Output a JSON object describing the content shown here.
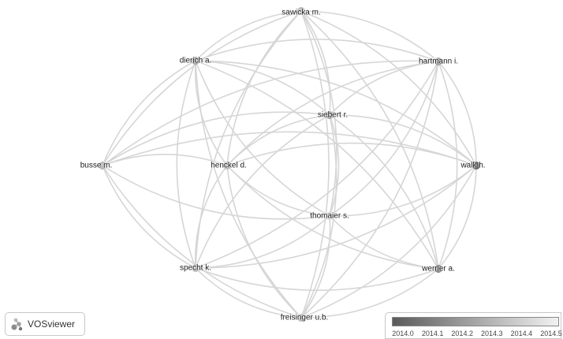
{
  "nodes": [
    {
      "id": "sawicka",
      "label": "sawicka m.",
      "score": 2014.3
    },
    {
      "id": "dierich",
      "label": "dierich a.",
      "score": 2014.2
    },
    {
      "id": "hartmann",
      "label": "hartmann i.",
      "score": 2014.2
    },
    {
      "id": "siebert",
      "label": "siebert r.",
      "score": 2014.2
    },
    {
      "id": "busse",
      "label": "busse m.",
      "score": 2014.3
    },
    {
      "id": "henckel",
      "label": "henckel d.",
      "score": 2014.3
    },
    {
      "id": "walk",
      "label": "walk h.",
      "score": 2014.0
    },
    {
      "id": "thomaier",
      "label": "thomaier s.",
      "score": 2014.4
    },
    {
      "id": "specht",
      "label": "specht k.",
      "score": 2014.3
    },
    {
      "id": "werner",
      "label": "werner a.",
      "score": 2014.1
    },
    {
      "id": "freisinger",
      "label": "freisinger u.b.",
      "score": 2014.3
    }
  ],
  "edges": [
    [
      "sawicka",
      "dierich"
    ],
    [
      "sawicka",
      "hartmann"
    ],
    [
      "sawicka",
      "siebert"
    ],
    [
      "sawicka",
      "henckel"
    ],
    [
      "sawicka",
      "walk"
    ],
    [
      "sawicka",
      "thomaier"
    ],
    [
      "sawicka",
      "specht"
    ],
    [
      "sawicka",
      "werner"
    ],
    [
      "sawicka",
      "freisinger"
    ],
    [
      "sawicka",
      "busse"
    ],
    [
      "dierich",
      "hartmann"
    ],
    [
      "dierich",
      "siebert"
    ],
    [
      "dierich",
      "busse"
    ],
    [
      "dierich",
      "henckel"
    ],
    [
      "dierich",
      "walk"
    ],
    [
      "dierich",
      "thomaier"
    ],
    [
      "dierich",
      "specht"
    ],
    [
      "dierich",
      "werner"
    ],
    [
      "dierich",
      "freisinger"
    ],
    [
      "hartmann",
      "siebert"
    ],
    [
      "hartmann",
      "busse"
    ],
    [
      "hartmann",
      "henckel"
    ],
    [
      "hartmann",
      "walk"
    ],
    [
      "hartmann",
      "thomaier"
    ],
    [
      "hartmann",
      "specht"
    ],
    [
      "hartmann",
      "werner"
    ],
    [
      "hartmann",
      "freisinger"
    ],
    [
      "siebert",
      "busse"
    ],
    [
      "siebert",
      "henckel"
    ],
    [
      "siebert",
      "walk"
    ],
    [
      "siebert",
      "thomaier"
    ],
    [
      "siebert",
      "specht"
    ],
    [
      "siebert",
      "werner"
    ],
    [
      "siebert",
      "freisinger"
    ],
    [
      "busse",
      "henckel"
    ],
    [
      "busse",
      "walk"
    ],
    [
      "busse",
      "thomaier"
    ],
    [
      "busse",
      "specht"
    ],
    [
      "busse",
      "freisinger"
    ],
    [
      "henckel",
      "walk"
    ],
    [
      "henckel",
      "thomaier"
    ],
    [
      "henckel",
      "specht"
    ],
    [
      "henckel",
      "werner"
    ],
    [
      "henckel",
      "freisinger"
    ],
    [
      "walk",
      "thomaier"
    ],
    [
      "walk",
      "specht"
    ],
    [
      "walk",
      "werner"
    ],
    [
      "walk",
      "freisinger"
    ],
    [
      "thomaier",
      "specht"
    ],
    [
      "thomaier",
      "werner"
    ],
    [
      "thomaier",
      "freisinger"
    ],
    [
      "specht",
      "werner"
    ],
    [
      "specht",
      "freisinger"
    ],
    [
      "werner",
      "freisinger"
    ]
  ],
  "logo": {
    "text": "VOSviewer",
    "icon": "vosviewer-logo-icon"
  },
  "legend": {
    "ticks": [
      "2014.0",
      "2014.1",
      "2014.2",
      "2014.3",
      "2014.4",
      "2014.5"
    ],
    "range": [
      2014.0,
      2014.5
    ],
    "colors": {
      "low": "#5a5a5a",
      "high": "#f2f2f2"
    }
  }
}
